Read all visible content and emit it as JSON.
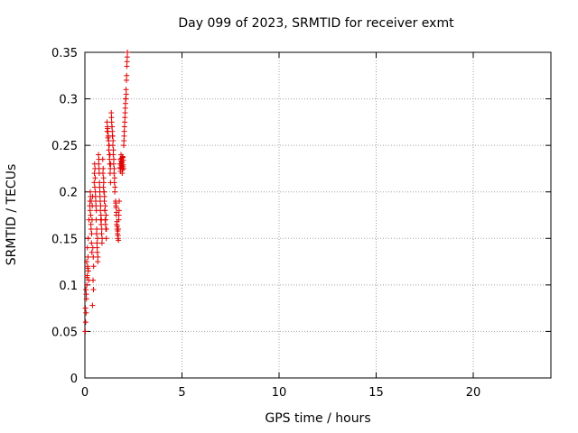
{
  "chart_data": {
    "type": "scatter",
    "title": "Day 099 of 2023, SRMTID for receiver exmt",
    "xlabel": "GPS time / hours",
    "ylabel": "SRMTID / TECUs",
    "xlim": [
      0,
      24
    ],
    "ylim": [
      0,
      0.35
    ],
    "xticks": [
      0,
      5,
      10,
      15,
      20
    ],
    "yticks": [
      0,
      0.05,
      0.1,
      0.15,
      0.2,
      0.25,
      0.3,
      0.35
    ],
    "ytick_labels": [
      "0",
      "0.05",
      "0.1",
      "0.15",
      "0.2",
      "0.25",
      "0.3",
      "0.35"
    ],
    "grid": true,
    "marker": "+",
    "color": "#e00000",
    "series": [
      {
        "x": [
          0.02,
          0.04,
          0.06,
          0.08,
          0.1,
          0.12,
          0.14,
          0.16,
          0.18,
          0.2,
          0.05,
          0.09,
          0.13,
          0.17,
          0.21,
          0.25,
          0.03,
          0.07,
          0.11,
          0.15,
          0.26,
          0.28,
          0.3,
          0.32,
          0.34,
          0.36,
          0.38,
          0.4,
          0.42,
          0.44,
          0.27,
          0.31,
          0.35,
          0.39,
          0.43,
          0.29,
          0.33,
          0.37,
          0.41,
          0.45,
          0.48,
          0.5,
          0.52,
          0.54,
          0.56,
          0.58,
          0.6,
          0.62,
          0.64,
          0.66,
          0.49,
          0.53,
          0.57,
          0.61,
          0.65,
          0.51,
          0.55,
          0.59,
          0.63,
          0.67,
          0.7,
          0.72,
          0.74,
          0.76,
          0.78,
          0.8,
          0.82,
          0.84,
          0.86,
          0.88,
          0.71,
          0.75,
          0.79,
          0.83,
          0.87,
          0.73,
          0.77,
          0.81,
          0.85,
          0.89,
          0.92,
          0.94,
          0.96,
          0.98,
          1.0,
          1.02,
          1.04,
          1.06,
          1.08,
          1.1,
          0.93,
          0.97,
          1.01,
          1.05,
          1.09,
          0.95,
          0.99,
          1.03,
          1.07,
          1.11,
          1.14,
          1.16,
          1.18,
          1.2,
          1.22,
          1.24,
          1.26,
          1.28,
          1.3,
          1.32,
          1.15,
          1.19,
          1.23,
          1.27,
          1.31,
          1.17,
          1.21,
          1.25,
          1.29,
          1.33,
          1.36,
          1.38,
          1.4,
          1.42,
          1.44,
          1.46,
          1.48,
          1.5,
          1.52,
          1.54,
          1.37,
          1.41,
          1.45,
          1.49,
          1.53,
          1.39,
          1.43,
          1.47,
          1.51,
          1.55,
          1.58,
          1.6,
          1.62,
          1.64,
          1.66,
          1.68,
          1.7,
          1.72,
          1.74,
          1.76,
          1.59,
          1.63,
          1.67,
          1.71,
          1.75,
          1.61,
          1.65,
          1.69,
          1.73,
          1.77,
          1.8,
          1.82,
          1.84,
          1.86,
          1.88,
          1.9,
          1.92,
          1.94,
          1.96,
          1.98,
          1.81,
          1.85,
          1.89,
          1.93,
          1.97,
          1.83,
          1.87,
          1.91,
          1.95,
          1.99,
          2.0,
          2.02,
          2.04,
          2.06,
          2.08,
          2.1,
          2.12,
          2.14,
          2.16,
          2.18,
          2.01,
          2.05,
          2.09,
          2.13,
          2.17,
          2.03,
          2.07,
          2.11,
          2.15,
          2.19
        ],
        "y": [
          0.05,
          0.06,
          0.07,
          0.085,
          0.1,
          0.11,
          0.12,
          0.13,
          0.115,
          0.105,
          0.095,
          0.125,
          0.14,
          0.15,
          0.17,
          0.185,
          0.075,
          0.09,
          0.108,
          0.118,
          0.19,
          0.2,
          0.175,
          0.16,
          0.145,
          0.135,
          0.185,
          0.195,
          0.105,
          0.095,
          0.18,
          0.165,
          0.155,
          0.078,
          0.13,
          0.195,
          0.19,
          0.17,
          0.14,
          0.12,
          0.21,
          0.23,
          0.225,
          0.2,
          0.19,
          0.17,
          0.155,
          0.145,
          0.135,
          0.125,
          0.22,
          0.215,
          0.185,
          0.16,
          0.15,
          0.205,
          0.195,
          0.18,
          0.14,
          0.13,
          0.24,
          0.235,
          0.22,
          0.205,
          0.195,
          0.18,
          0.17,
          0.165,
          0.155,
          0.145,
          0.23,
          0.21,
          0.19,
          0.175,
          0.16,
          0.225,
          0.2,
          0.185,
          0.17,
          0.15,
          0.235,
          0.225,
          0.215,
          0.2,
          0.19,
          0.18,
          0.17,
          0.165,
          0.16,
          0.15,
          0.22,
          0.21,
          0.195,
          0.185,
          0.175,
          0.205,
          0.2,
          0.18,
          0.17,
          0.16,
          0.275,
          0.27,
          0.265,
          0.26,
          0.255,
          0.25,
          0.24,
          0.23,
          0.22,
          0.21,
          0.265,
          0.258,
          0.245,
          0.235,
          0.225,
          0.268,
          0.26,
          0.25,
          0.24,
          0.23,
          0.285,
          0.275,
          0.27,
          0.26,
          0.25,
          0.24,
          0.23,
          0.22,
          0.21,
          0.2,
          0.28,
          0.265,
          0.255,
          0.235,
          0.215,
          0.27,
          0.26,
          0.245,
          0.225,
          0.205,
          0.19,
          0.185,
          0.175,
          0.165,
          0.16,
          0.155,
          0.15,
          0.16,
          0.17,
          0.18,
          0.188,
          0.178,
          0.163,
          0.153,
          0.175,
          0.183,
          0.168,
          0.158,
          0.148,
          0.19,
          0.23,
          0.235,
          0.225,
          0.24,
          0.228,
          0.232,
          0.22,
          0.238,
          0.227,
          0.234,
          0.226,
          0.23,
          0.236,
          0.224,
          0.229,
          0.222,
          0.233,
          0.231,
          0.237,
          0.225,
          0.25,
          0.26,
          0.27,
          0.28,
          0.29,
          0.3,
          0.31,
          0.32,
          0.335,
          0.345,
          0.255,
          0.275,
          0.295,
          0.305,
          0.34,
          0.265,
          0.285,
          0.3,
          0.325,
          0.35
        ]
      }
    ]
  }
}
